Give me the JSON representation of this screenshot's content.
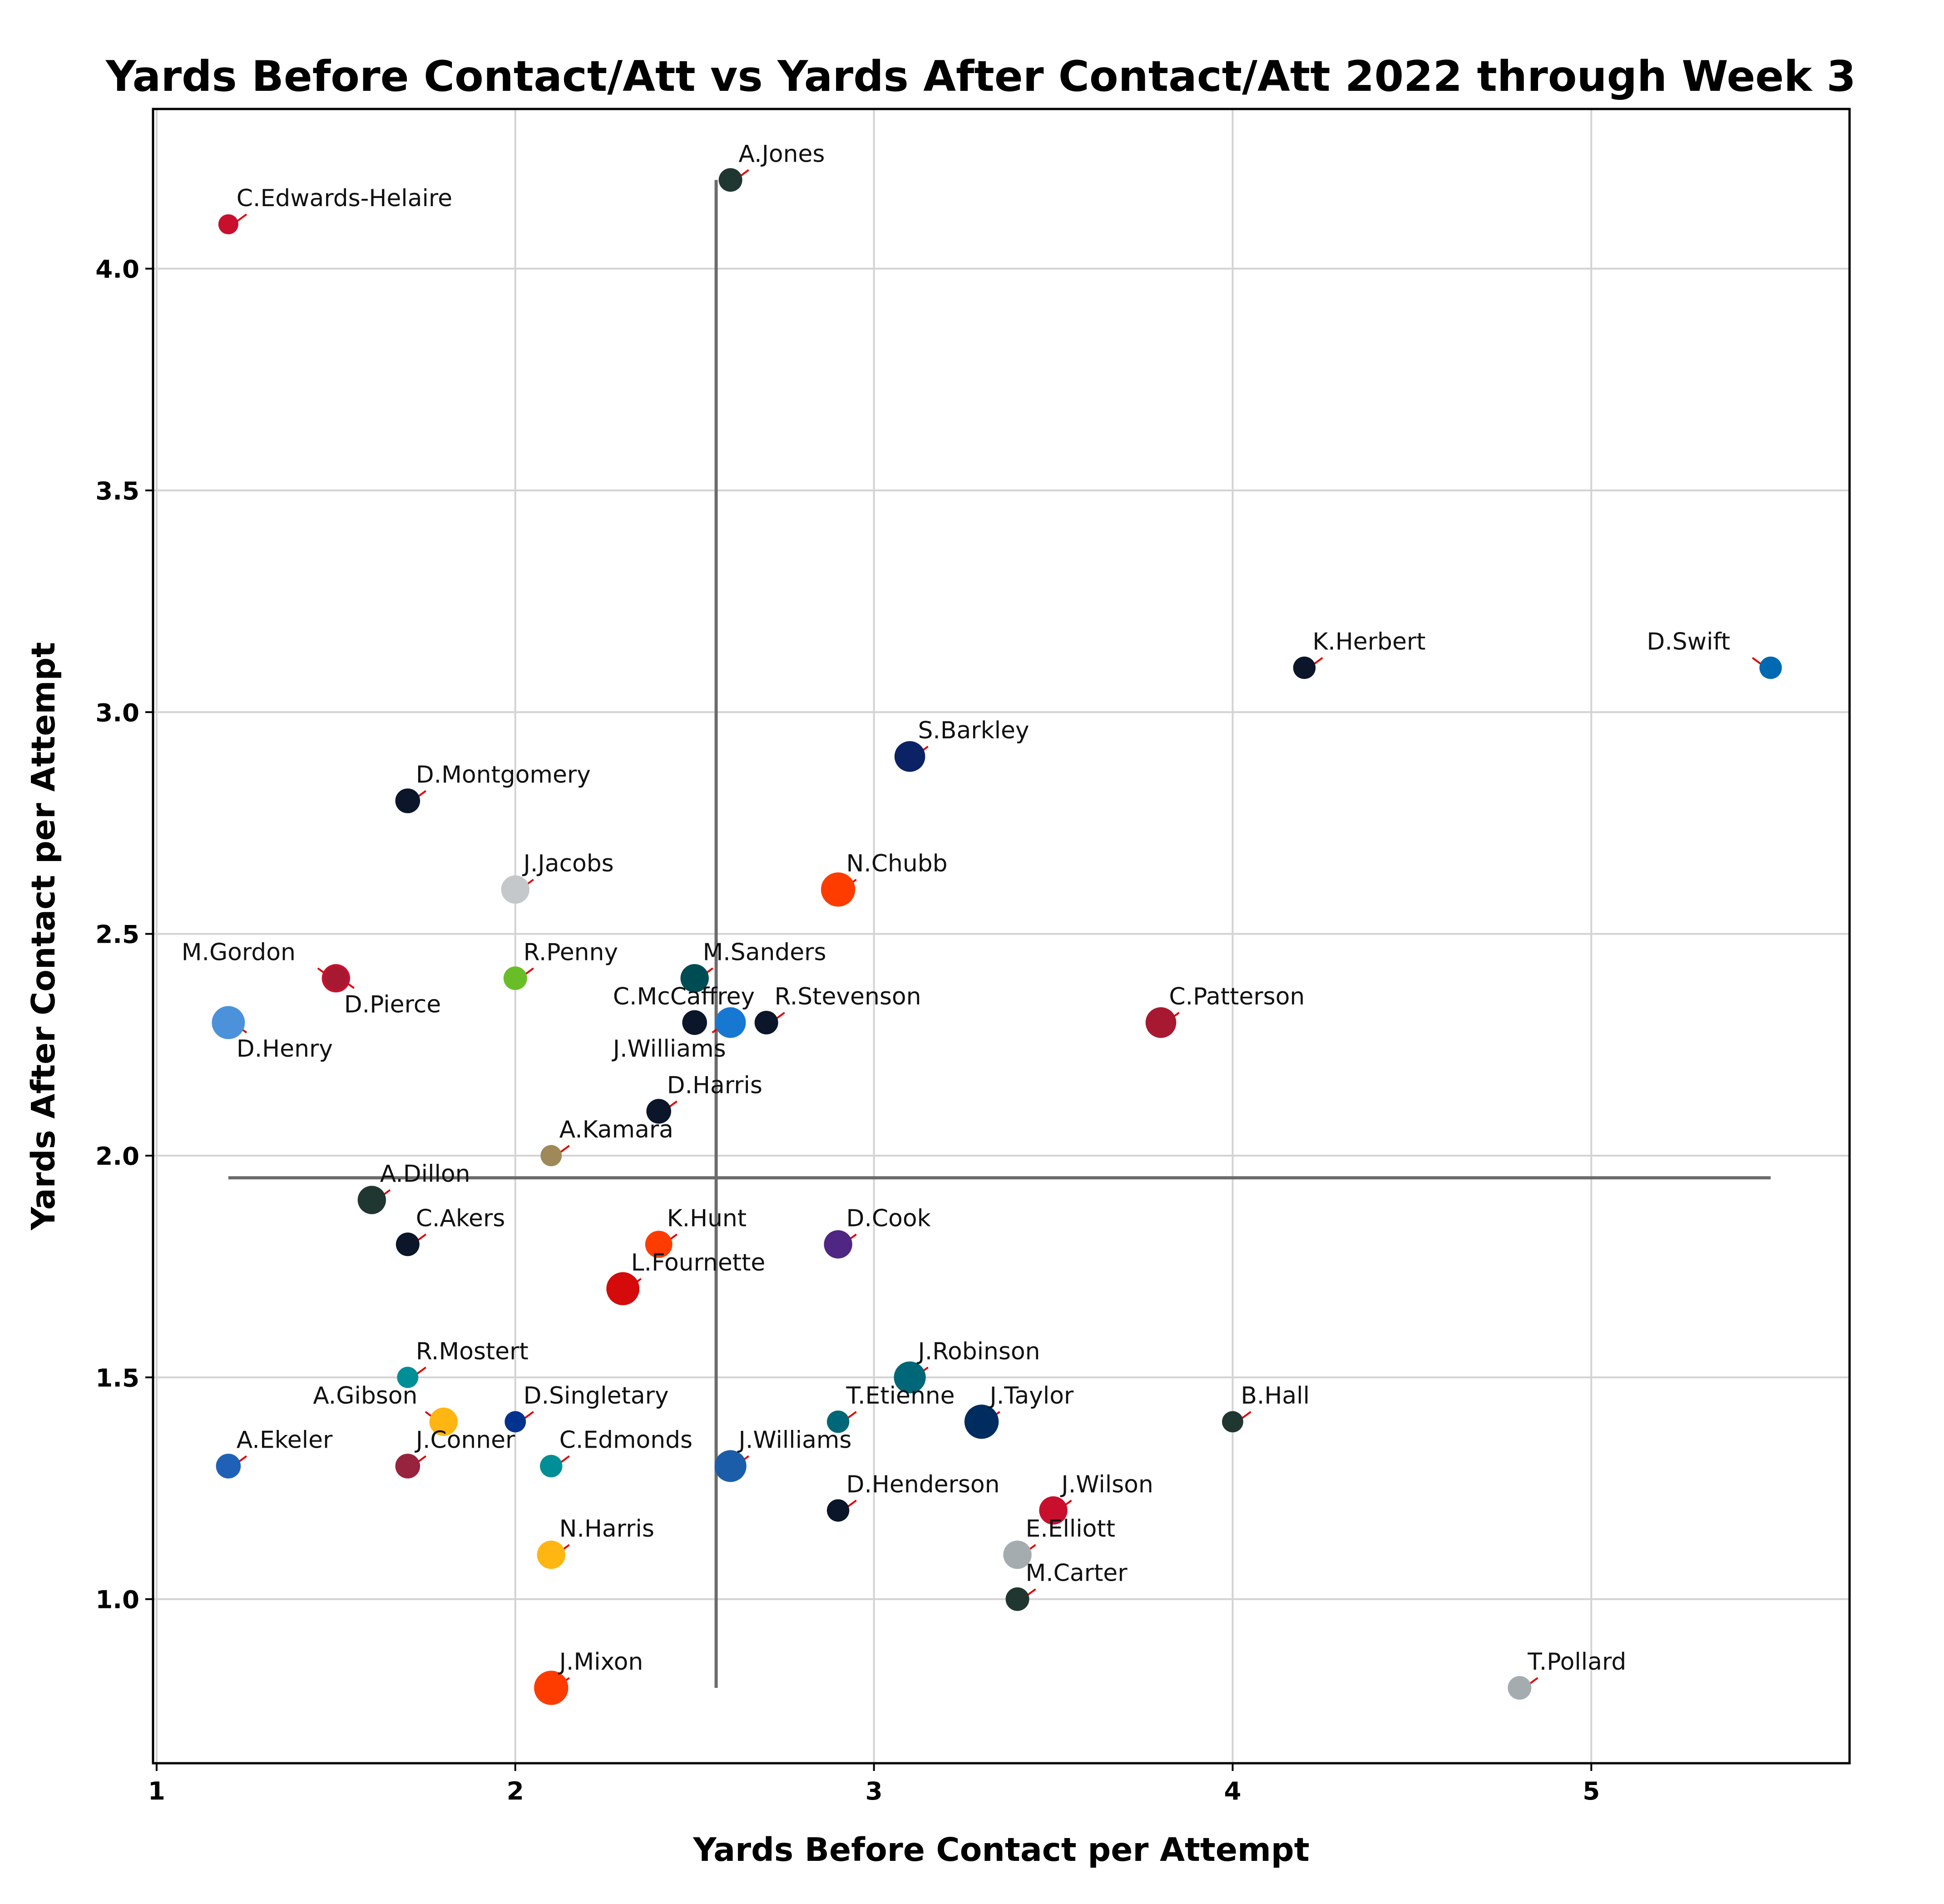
{
  "chart_data": {
    "type": "scatter",
    "title": "Yards Before Contact/Att vs Yards After Contact/Att 2022 through Week 3",
    "xlabel": "Yards Before Contact per Attempt",
    "ylabel": "Yards After Contact per Attempt",
    "xlim": [
      0.99,
      5.72
    ],
    "ylim": [
      0.63,
      4.36
    ],
    "xticks": [
      "1",
      "2",
      "3",
      "4",
      "5"
    ],
    "yticks": [
      "1.0",
      "1.5",
      "2.0",
      "2.5",
      "3.0",
      "3.5",
      "4.0"
    ],
    "grid": true,
    "reference_lines": {
      "x_mean": 2.56,
      "y_mean": 1.95
    },
    "points": [
      {
        "label": "A.Jones",
        "x": 2.6,
        "y": 4.2,
        "color": "#203731",
        "size": 1.0
      },
      {
        "label": "C.Edwards-Helaire",
        "x": 1.2,
        "y": 4.1,
        "color": "#C8102E",
        "size": 0.85
      },
      {
        "label": "K.Herbert",
        "x": 4.2,
        "y": 3.1,
        "color": "#0B162A",
        "size": 0.95
      },
      {
        "label": "D.Swift",
        "x": 5.5,
        "y": 3.1,
        "color": "#0069B1",
        "size": 0.95
      },
      {
        "label": "S.Barkley",
        "x": 3.1,
        "y": 2.9,
        "color": "#0B2265",
        "size": 1.3
      },
      {
        "label": "D.Montgomery",
        "x": 1.7,
        "y": 2.8,
        "color": "#0B162A",
        "size": 1.05
      },
      {
        "label": "J.Jacobs",
        "x": 2.0,
        "y": 2.6,
        "color": "#C4C8CB",
        "size": 1.2
      },
      {
        "label": "N.Chubb",
        "x": 2.9,
        "y": 2.6,
        "color": "#FF3C00",
        "size": 1.45
      },
      {
        "label": "M.Gordon",
        "x": 1.5,
        "y": 2.4,
        "color": "#C8102E",
        "size": 1.2
      },
      {
        "label": "R.Penny",
        "x": 2.0,
        "y": 2.4,
        "color": "#69BE28",
        "size": 1.0
      },
      {
        "label": "M.Sanders",
        "x": 2.5,
        "y": 2.4,
        "color": "#004C54",
        "size": 1.2
      },
      {
        "label": "D.Pierce",
        "x": 1.5,
        "y": 2.4,
        "color": "#A71930",
        "size": 1.0
      },
      {
        "label": "C.McCaffrey",
        "x": 2.5,
        "y": 2.3,
        "color": "#0B162A",
        "size": 1.05
      },
      {
        "label": "J.Williams",
        "x": 2.6,
        "y": 2.3,
        "color": "#1778D1",
        "size": 1.3
      },
      {
        "label": "R.Stevenson",
        "x": 2.7,
        "y": 2.3,
        "color": "#0B162A",
        "size": 1.0
      },
      {
        "label": "C.Patterson",
        "x": 3.8,
        "y": 2.3,
        "color": "#A71930",
        "size": 1.3
      },
      {
        "label": "D.Henry",
        "x": 1.2,
        "y": 2.3,
        "color": "#4B92DB",
        "size": 1.4
      },
      {
        "label": "D.Harris",
        "x": 2.4,
        "y": 2.1,
        "color": "#0B162A",
        "size": 1.05
      },
      {
        "label": "A.Kamara",
        "x": 2.1,
        "y": 2.0,
        "color": "#9F8958",
        "size": 0.9
      },
      {
        "label": "A.Dillon",
        "x": 1.6,
        "y": 1.9,
        "color": "#203731",
        "size": 1.2
      },
      {
        "label": "C.Akers",
        "x": 1.7,
        "y": 1.8,
        "color": "#0B162A",
        "size": 1.0
      },
      {
        "label": "K.Hunt",
        "x": 2.4,
        "y": 1.8,
        "color": "#FF3C00",
        "size": 1.15
      },
      {
        "label": "D.Cook",
        "x": 2.9,
        "y": 1.8,
        "color": "#4F2683",
        "size": 1.2
      },
      {
        "label": "L.Fournette",
        "x": 2.3,
        "y": 1.7,
        "color": "#D50A0A",
        "size": 1.4
      },
      {
        "label": "R.Mostert",
        "x": 1.7,
        "y": 1.5,
        "color": "#008E97",
        "size": 0.9
      },
      {
        "label": "J.Robinson",
        "x": 3.1,
        "y": 1.5,
        "color": "#006778",
        "size": 1.35
      },
      {
        "label": "A.Gibson",
        "x": 1.8,
        "y": 1.4,
        "color": "#FFB612",
        "size": 1.2
      },
      {
        "label": "D.Singletary",
        "x": 2.0,
        "y": 1.4,
        "color": "#00338D",
        "size": 0.9
      },
      {
        "label": "T.Etienne",
        "x": 2.9,
        "y": 1.4,
        "color": "#006778",
        "size": 0.95
      },
      {
        "label": "J.Taylor",
        "x": 3.3,
        "y": 1.4,
        "color": "#002C5F",
        "size": 1.45
      },
      {
        "label": "B.Hall",
        "x": 4.0,
        "y": 1.4,
        "color": "#203731",
        "size": 0.9
      },
      {
        "label": "A.Ekeler",
        "x": 1.2,
        "y": 1.3,
        "color": "#2061B8",
        "size": 1.05
      },
      {
        "label": "J.Conner",
        "x": 1.7,
        "y": 1.3,
        "color": "#97233F",
        "size": 1.05
      },
      {
        "label": "C.Edmonds",
        "x": 2.1,
        "y": 1.3,
        "color": "#008E97",
        "size": 0.95
      },
      {
        "label": "J.Williams",
        "x": 2.6,
        "y": 1.3,
        "color": "#1C5DAA",
        "size": 1.35
      },
      {
        "label": "D.Henderson",
        "x": 2.9,
        "y": 1.2,
        "color": "#0B162A",
        "size": 0.95
      },
      {
        "label": "J.Wilson",
        "x": 3.5,
        "y": 1.2,
        "color": "#C8102E",
        "size": 1.2
      },
      {
        "label": "N.Harris",
        "x": 2.1,
        "y": 1.1,
        "color": "#FFB612",
        "size": 1.2
      },
      {
        "label": "E.Elliott",
        "x": 3.4,
        "y": 1.1,
        "color": "#A5ACAF",
        "size": 1.2
      },
      {
        "label": "M.Carter",
        "x": 3.4,
        "y": 1.0,
        "color": "#203731",
        "size": 1.0
      },
      {
        "label": "J.Mixon",
        "x": 2.1,
        "y": 0.8,
        "color": "#FF3C00",
        "size": 1.45
      },
      {
        "label": "T.Pollard",
        "x": 4.8,
        "y": 0.8,
        "color": "#A5ACAF",
        "size": 1.0
      }
    ]
  }
}
